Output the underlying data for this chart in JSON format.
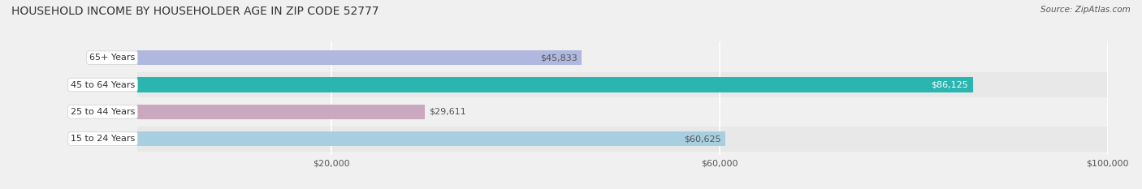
{
  "title": "HOUSEHOLD INCOME BY HOUSEHOLDER AGE IN ZIP CODE 52777",
  "source": "Source: ZipAtlas.com",
  "categories": [
    "15 to 24 Years",
    "25 to 44 Years",
    "45 to 64 Years",
    "65+ Years"
  ],
  "values": [
    60625,
    29611,
    86125,
    45833
  ],
  "bar_colors": [
    "#a8cfe0",
    "#c9a8c0",
    "#2ab5b0",
    "#b0b8e0"
  ],
  "label_colors": [
    "#555555",
    "#555555",
    "#ffffff",
    "#555555"
  ],
  "bg_color": "#f0f0f0",
  "bar_bg_color": "#e8e8e8",
  "xlim": [
    0,
    100000
  ],
  "xticks": [
    20000,
    60000,
    100000
  ],
  "xtick_labels": [
    "$20,000",
    "$60,000",
    "$100,000"
  ],
  "bar_height": 0.55,
  "figsize": [
    14.06,
    2.33
  ],
  "dpi": 100
}
